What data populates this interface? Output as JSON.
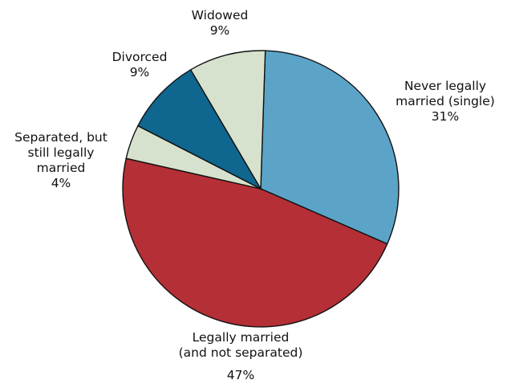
{
  "chart_data": {
    "type": "pie",
    "title": "",
    "start": "12 o'clock",
    "direction": "clockwise",
    "slices": [
      {
        "label_lines": [
          "Never legally",
          "married (single)"
        ],
        "value_label": "31%",
        "value": 31,
        "color": "#5ba4c7"
      },
      {
        "label_lines": [
          "Legally married",
          "(and not separated)"
        ],
        "value_label": "47%",
        "value": 47,
        "color": "#b52f36"
      },
      {
        "label_lines": [
          "Separated, but",
          "still legally",
          "married"
        ],
        "value_label": "4%",
        "value": 4,
        "color": "#d6e2cd"
      },
      {
        "label_lines": [
          "Divorced"
        ],
        "value_label": "9%",
        "value": 9,
        "color": "#0f668e"
      },
      {
        "label_lines": [
          "Widowed"
        ],
        "value_label": "9%",
        "value": 9,
        "color": "#d6e2cd"
      }
    ]
  }
}
